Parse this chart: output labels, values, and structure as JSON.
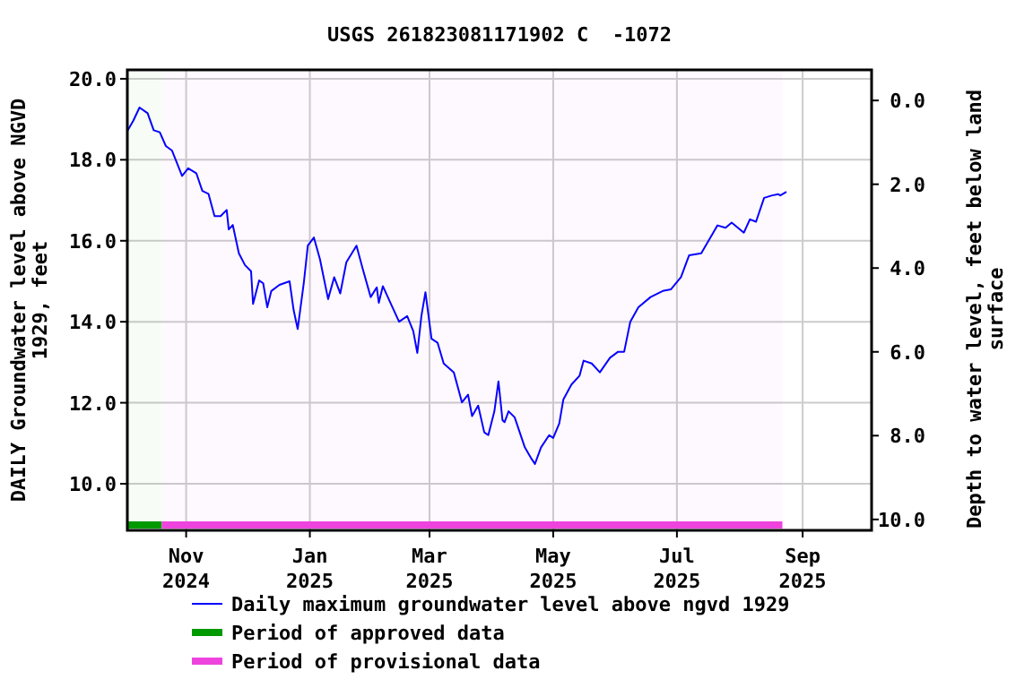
{
  "chart_data": {
    "type": "line",
    "title": "USGS 261823081171902 C  -1072",
    "ylabel": "DAILY Groundwater level above NGVD 1929, feet",
    "y2label": "Depth to water level, feet below land surface",
    "xlim": [
      "2024-10-03",
      "2025-10-05"
    ],
    "xticks": [
      {
        "value": "2024-11-01",
        "label": "Nov 2024"
      },
      {
        "value": "2025-01-01",
        "label": "Jan 2025"
      },
      {
        "value": "2025-03-01",
        "label": "Mar 2025"
      },
      {
        "value": "2025-05-01",
        "label": "May 2025"
      },
      {
        "value": "2025-07-01",
        "label": "Jul 2025"
      },
      {
        "value": "2025-09-01",
        "label": "Sep 2025"
      }
    ],
    "ylim": [
      8.85,
      20.22
    ],
    "yticks": [
      {
        "value": 10,
        "label": "10.0"
      },
      {
        "value": 12,
        "label": "12.0"
      },
      {
        "value": 14,
        "label": "14.0"
      },
      {
        "value": 16,
        "label": "16.0"
      },
      {
        "value": 18,
        "label": "18.0"
      },
      {
        "value": 20,
        "label": "20.0"
      }
    ],
    "y2lim": [
      10.26,
      -0.73
    ],
    "y2ticks": [
      {
        "value": 0,
        "label": "0.0"
      },
      {
        "value": 2,
        "label": "2.0"
      },
      {
        "value": 4,
        "label": "4.0"
      },
      {
        "value": 6,
        "label": "6.0"
      },
      {
        "value": 8,
        "label": "8.0"
      },
      {
        "value": 10,
        "label": "10.0"
      }
    ],
    "grid": true,
    "legend": "bottom",
    "bands": [
      {
        "axis": "x",
        "from": "2024-10-03",
        "to": "2024-10-20",
        "label": "Period of approved data",
        "color": "#009900"
      },
      {
        "axis": "x",
        "from": "2024-10-20",
        "to": "2025-08-22",
        "label": "Period of provisional data",
        "color": "#ee44dd"
      }
    ],
    "series": [
      {
        "name": "Daily maximum groundwater level above ngvd 1929",
        "color": "#0000ff",
        "x": [
          "2024-10-03",
          "2024-10-06",
          "2024-10-09",
          "2024-10-13",
          "2024-10-16",
          "2024-10-19",
          "2024-10-22",
          "2024-10-25",
          "2024-10-30",
          "2024-11-02",
          "2024-11-06",
          "2024-11-09",
          "2024-11-12",
          "2024-11-15",
          "2024-11-18",
          "2024-11-21",
          "2024-11-22",
          "2024-11-24",
          "2024-11-27",
          "2024-11-30",
          "2024-12-03",
          "2024-12-04",
          "2024-12-07",
          "2024-12-09",
          "2024-12-11",
          "2024-12-13",
          "2024-12-17",
          "2024-12-22",
          "2024-12-24",
          "2024-12-26",
          "2024-12-29",
          "2024-12-31",
          "2025-01-03",
          "2025-01-06",
          "2025-01-10",
          "2025-01-13",
          "2025-01-16",
          "2025-01-19",
          "2025-01-24",
          "2025-01-27",
          "2025-01-31",
          "2025-02-03",
          "2025-02-04",
          "2025-02-06",
          "2025-02-10",
          "2025-02-14",
          "2025-02-18",
          "2025-02-21",
          "2025-02-23",
          "2025-02-25",
          "2025-02-27",
          "2025-03-02",
          "2025-03-05",
          "2025-03-08",
          "2025-03-13",
          "2025-03-17",
          "2025-03-20",
          "2025-03-22",
          "2025-03-25",
          "2025-03-28",
          "2025-03-30",
          "2025-04-02",
          "2025-04-04",
          "2025-04-06",
          "2025-04-07",
          "2025-04-09",
          "2025-04-12",
          "2025-04-17",
          "2025-04-20",
          "2025-04-22",
          "2025-04-25",
          "2025-04-29",
          "2025-05-01",
          "2025-05-04",
          "2025-05-06",
          "2025-05-10",
          "2025-05-14",
          "2025-05-16",
          "2025-05-20",
          "2025-05-24",
          "2025-05-29",
          "2025-06-02",
          "2025-06-05",
          "2025-06-08",
          "2025-06-12",
          "2025-06-18",
          "2025-06-24",
          "2025-06-28",
          "2025-07-03",
          "2025-07-07",
          "2025-07-13",
          "2025-07-21",
          "2025-07-25",
          "2025-07-28",
          "2025-08-03",
          "2025-08-06",
          "2025-08-09",
          "2025-08-13",
          "2025-08-17",
          "2025-08-20",
          "2025-08-21",
          "2025-08-24"
        ],
        "values": [
          18.71,
          18.97,
          19.29,
          19.15,
          18.73,
          18.68,
          18.34,
          18.23,
          17.6,
          17.79,
          17.67,
          17.23,
          17.16,
          16.61,
          16.61,
          16.76,
          16.28,
          16.39,
          15.69,
          15.4,
          15.25,
          14.44,
          15.02,
          14.95,
          14.36,
          14.76,
          14.91,
          15.0,
          14.29,
          13.82,
          14.95,
          15.88,
          16.08,
          15.54,
          14.56,
          15.1,
          14.7,
          15.47,
          15.88,
          15.32,
          14.61,
          14.85,
          14.47,
          14.88,
          14.44,
          14.0,
          14.14,
          13.77,
          13.23,
          14.14,
          14.73,
          13.58,
          13.48,
          12.97,
          12.75,
          12.01,
          12.2,
          11.67,
          11.93,
          11.27,
          11.2,
          11.79,
          12.53,
          11.57,
          11.52,
          11.79,
          11.64,
          10.9,
          10.64,
          10.49,
          10.9,
          11.2,
          11.13,
          11.49,
          12.08,
          12.45,
          12.67,
          13.04,
          12.97,
          12.75,
          13.11,
          13.26,
          13.26,
          14.0,
          14.36,
          14.61,
          14.76,
          14.8,
          15.1,
          15.64,
          15.69,
          16.38,
          16.32,
          16.45,
          16.2,
          16.53,
          16.47,
          17.06,
          17.12,
          17.15,
          17.12,
          17.21
        ]
      }
    ]
  }
}
